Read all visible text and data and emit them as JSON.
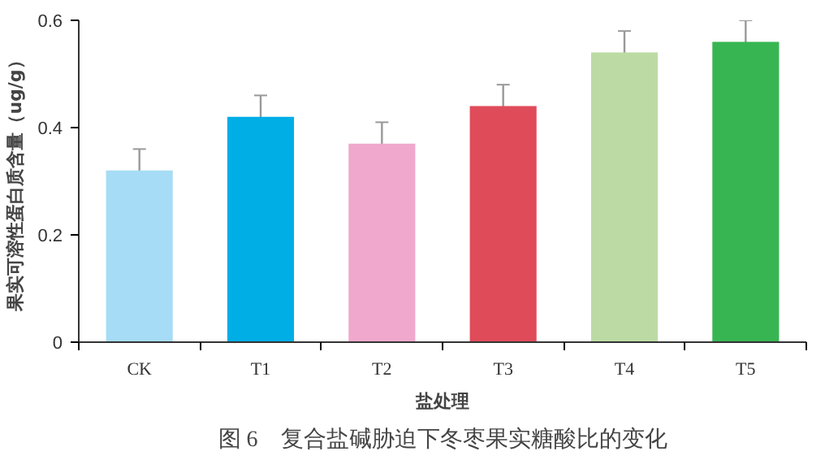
{
  "chart_data": {
    "type": "bar",
    "categories": [
      "CK",
      "T1",
      "T2",
      "T3",
      "T4",
      "T5"
    ],
    "values": [
      0.32,
      0.42,
      0.37,
      0.44,
      0.54,
      0.56
    ],
    "errors": [
      0.04,
      0.04,
      0.04,
      0.04,
      0.04,
      0.04
    ],
    "colors": [
      "#a6dcf5",
      "#00aee6",
      "#f0a8cc",
      "#e04b5a",
      "#bcdba4",
      "#38b553"
    ],
    "xlabel": "盐处理",
    "ylabel": "果实可溶性蛋白质含量（ug/g）",
    "ylim": [
      0,
      0.6
    ],
    "yticks": [
      0,
      0.2,
      0.4,
      0.6
    ],
    "grid": false,
    "annotations": [
      "图 6　复合盐碱胁迫下冬枣果实糖酸比的变化"
    ]
  }
}
